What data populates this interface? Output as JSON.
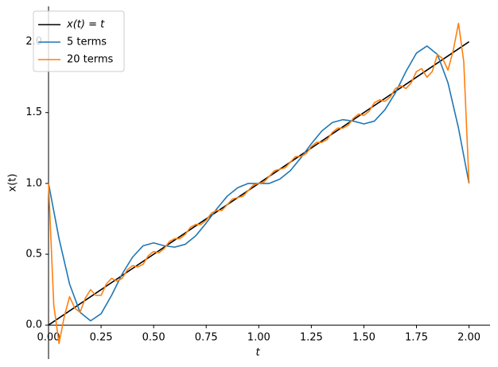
{
  "chart_data": {
    "type": "line",
    "xlabel": "t",
    "ylabel": "x(t)",
    "xlim": [
      0,
      2.1
    ],
    "ylim": [
      -0.24,
      2.25
    ],
    "xticks": [
      {
        "value": 0,
        "label": "0.00"
      },
      {
        "value": 0.25,
        "label": "0.25"
      },
      {
        "value": 0.5,
        "label": "0.50"
      },
      {
        "value": 0.75,
        "label": "0.75"
      },
      {
        "value": 1,
        "label": "1.00"
      },
      {
        "value": 1.25,
        "label": "1.25"
      },
      {
        "value": 1.5,
        "label": "1.50"
      },
      {
        "value": 1.75,
        "label": "1.75"
      },
      {
        "value": 2,
        "label": "2.00"
      }
    ],
    "yticks": [
      {
        "value": 0,
        "label": "0.0"
      },
      {
        "value": 0.5,
        "label": "0.5"
      },
      {
        "value": 1,
        "label": "1.0"
      },
      {
        "value": 1.5,
        "label": "1.5"
      },
      {
        "value": 2,
        "label": "2.0"
      }
    ],
    "legend": "upper left",
    "series": [
      {
        "name": "x(t) = t",
        "color": "#000000",
        "x": [
          0,
          2
        ],
        "values": [
          0,
          2
        ]
      },
      {
        "name": "5 terms",
        "color": "#1f77b4",
        "x": [
          0,
          0.05,
          0.1,
          0.15,
          0.2,
          0.25,
          0.3,
          0.35,
          0.4,
          0.45,
          0.5,
          0.55,
          0.6,
          0.65,
          0.7,
          0.75,
          0.8,
          0.85,
          0.9,
          0.95,
          1,
          1.05,
          1.1,
          1.15,
          1.2,
          1.25,
          1.3,
          1.35,
          1.4,
          1.45,
          1.5,
          1.55,
          1.6,
          1.65,
          1.7,
          1.75,
          1.8,
          1.85,
          1.9,
          1.95,
          2
        ],
        "values": [
          1.0,
          0.61,
          0.29,
          0.09,
          0.03,
          0.08,
          0.21,
          0.36,
          0.48,
          0.56,
          0.58,
          0.56,
          0.55,
          0.57,
          0.63,
          0.72,
          0.82,
          0.91,
          0.97,
          1.0,
          1.0,
          1.0,
          1.03,
          1.09,
          1.18,
          1.28,
          1.37,
          1.43,
          1.45,
          1.44,
          1.42,
          1.44,
          1.52,
          1.64,
          1.79,
          1.92,
          1.97,
          1.91,
          1.71,
          1.39,
          1.0
        ]
      },
      {
        "name": "20 terms",
        "color": "#ff7f0e",
        "x": [
          0,
          0.025,
          0.05,
          0.075,
          0.1,
          0.125,
          0.15,
          0.175,
          0.2,
          0.225,
          0.25,
          0.275,
          0.3,
          0.325,
          0.35,
          0.375,
          0.4,
          0.425,
          0.45,
          0.475,
          0.5,
          0.525,
          0.55,
          0.575,
          0.6,
          0.625,
          0.65,
          0.675,
          0.7,
          0.725,
          0.75,
          0.775,
          0.8,
          0.825,
          0.85,
          0.875,
          0.9,
          0.925,
          0.95,
          0.975,
          1,
          1.025,
          1.05,
          1.075,
          1.1,
          1.125,
          1.15,
          1.175,
          1.2,
          1.225,
          1.25,
          1.275,
          1.3,
          1.325,
          1.35,
          1.375,
          1.4,
          1.425,
          1.45,
          1.475,
          1.5,
          1.525,
          1.55,
          1.575,
          1.6,
          1.625,
          1.65,
          1.675,
          1.7,
          1.725,
          1.75,
          1.775,
          1.8,
          1.825,
          1.85,
          1.875,
          1.9,
          1.925,
          1.95,
          1.975,
          2
        ],
        "values": [
          1.0,
          0.14,
          -0.13,
          0.06,
          0.2,
          0.12,
          0.09,
          0.19,
          0.25,
          0.21,
          0.21,
          0.29,
          0.33,
          0.31,
          0.33,
          0.39,
          0.42,
          0.41,
          0.43,
          0.49,
          0.52,
          0.51,
          0.54,
          0.59,
          0.61,
          0.61,
          0.64,
          0.69,
          0.71,
          0.71,
          0.74,
          0.79,
          0.81,
          0.81,
          0.85,
          0.89,
          0.9,
          0.91,
          0.95,
          0.99,
          1.0,
          1.01,
          1.05,
          1.09,
          1.1,
          1.11,
          1.15,
          1.19,
          1.19,
          1.21,
          1.26,
          1.29,
          1.29,
          1.31,
          1.36,
          1.39,
          1.39,
          1.41,
          1.46,
          1.49,
          1.48,
          1.51,
          1.57,
          1.59,
          1.58,
          1.61,
          1.67,
          1.69,
          1.67,
          1.71,
          1.79,
          1.81,
          1.75,
          1.79,
          1.91,
          1.88,
          1.8,
          1.94,
          2.13,
          1.86,
          1.0
        ]
      }
    ]
  }
}
